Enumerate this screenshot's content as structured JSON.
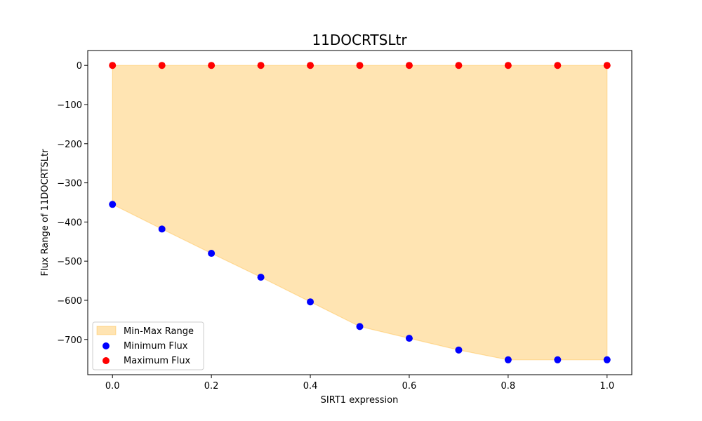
{
  "chart_data": {
    "type": "scatter",
    "title": "11DOCRTSLtr",
    "xlabel": "SIRT1 expression",
    "ylabel": "Flux Range of 11DOCRTSLtr",
    "x": [
      0.0,
      0.1,
      0.2,
      0.3,
      0.4,
      0.5,
      0.6,
      0.7,
      0.8,
      0.9,
      1.0
    ],
    "series": [
      {
        "name": "Minimum Flux",
        "color": "#0000ff",
        "values": [
          -355,
          -418,
          -480,
          -541,
          -604,
          -667,
          -697,
          -727,
          -752,
          -752,
          -752
        ]
      },
      {
        "name": "Maximum Flux",
        "color": "#ff0000",
        "values": [
          0,
          0,
          0,
          0,
          0,
          0,
          0,
          0,
          0,
          0,
          0
        ]
      }
    ],
    "fill": {
      "name": "Min-Max Range",
      "color": "#ffa500",
      "opacity": 0.3
    },
    "xlim": [
      -0.05,
      1.05
    ],
    "ylim": [
      -790,
      38
    ],
    "xticks": [
      0.0,
      0.2,
      0.4,
      0.6,
      0.8,
      1.0
    ],
    "xtick_labels": [
      "0.0",
      "0.2",
      "0.4",
      "0.6",
      "0.8",
      "1.0"
    ],
    "yticks": [
      0,
      -100,
      -200,
      -300,
      -400,
      -500,
      -600,
      -700
    ],
    "ytick_labels": [
      "0",
      "−100",
      "−200",
      "−300",
      "−400",
      "−500",
      "−600",
      "−700"
    ],
    "grid": false,
    "legend_position": "lower-left"
  }
}
